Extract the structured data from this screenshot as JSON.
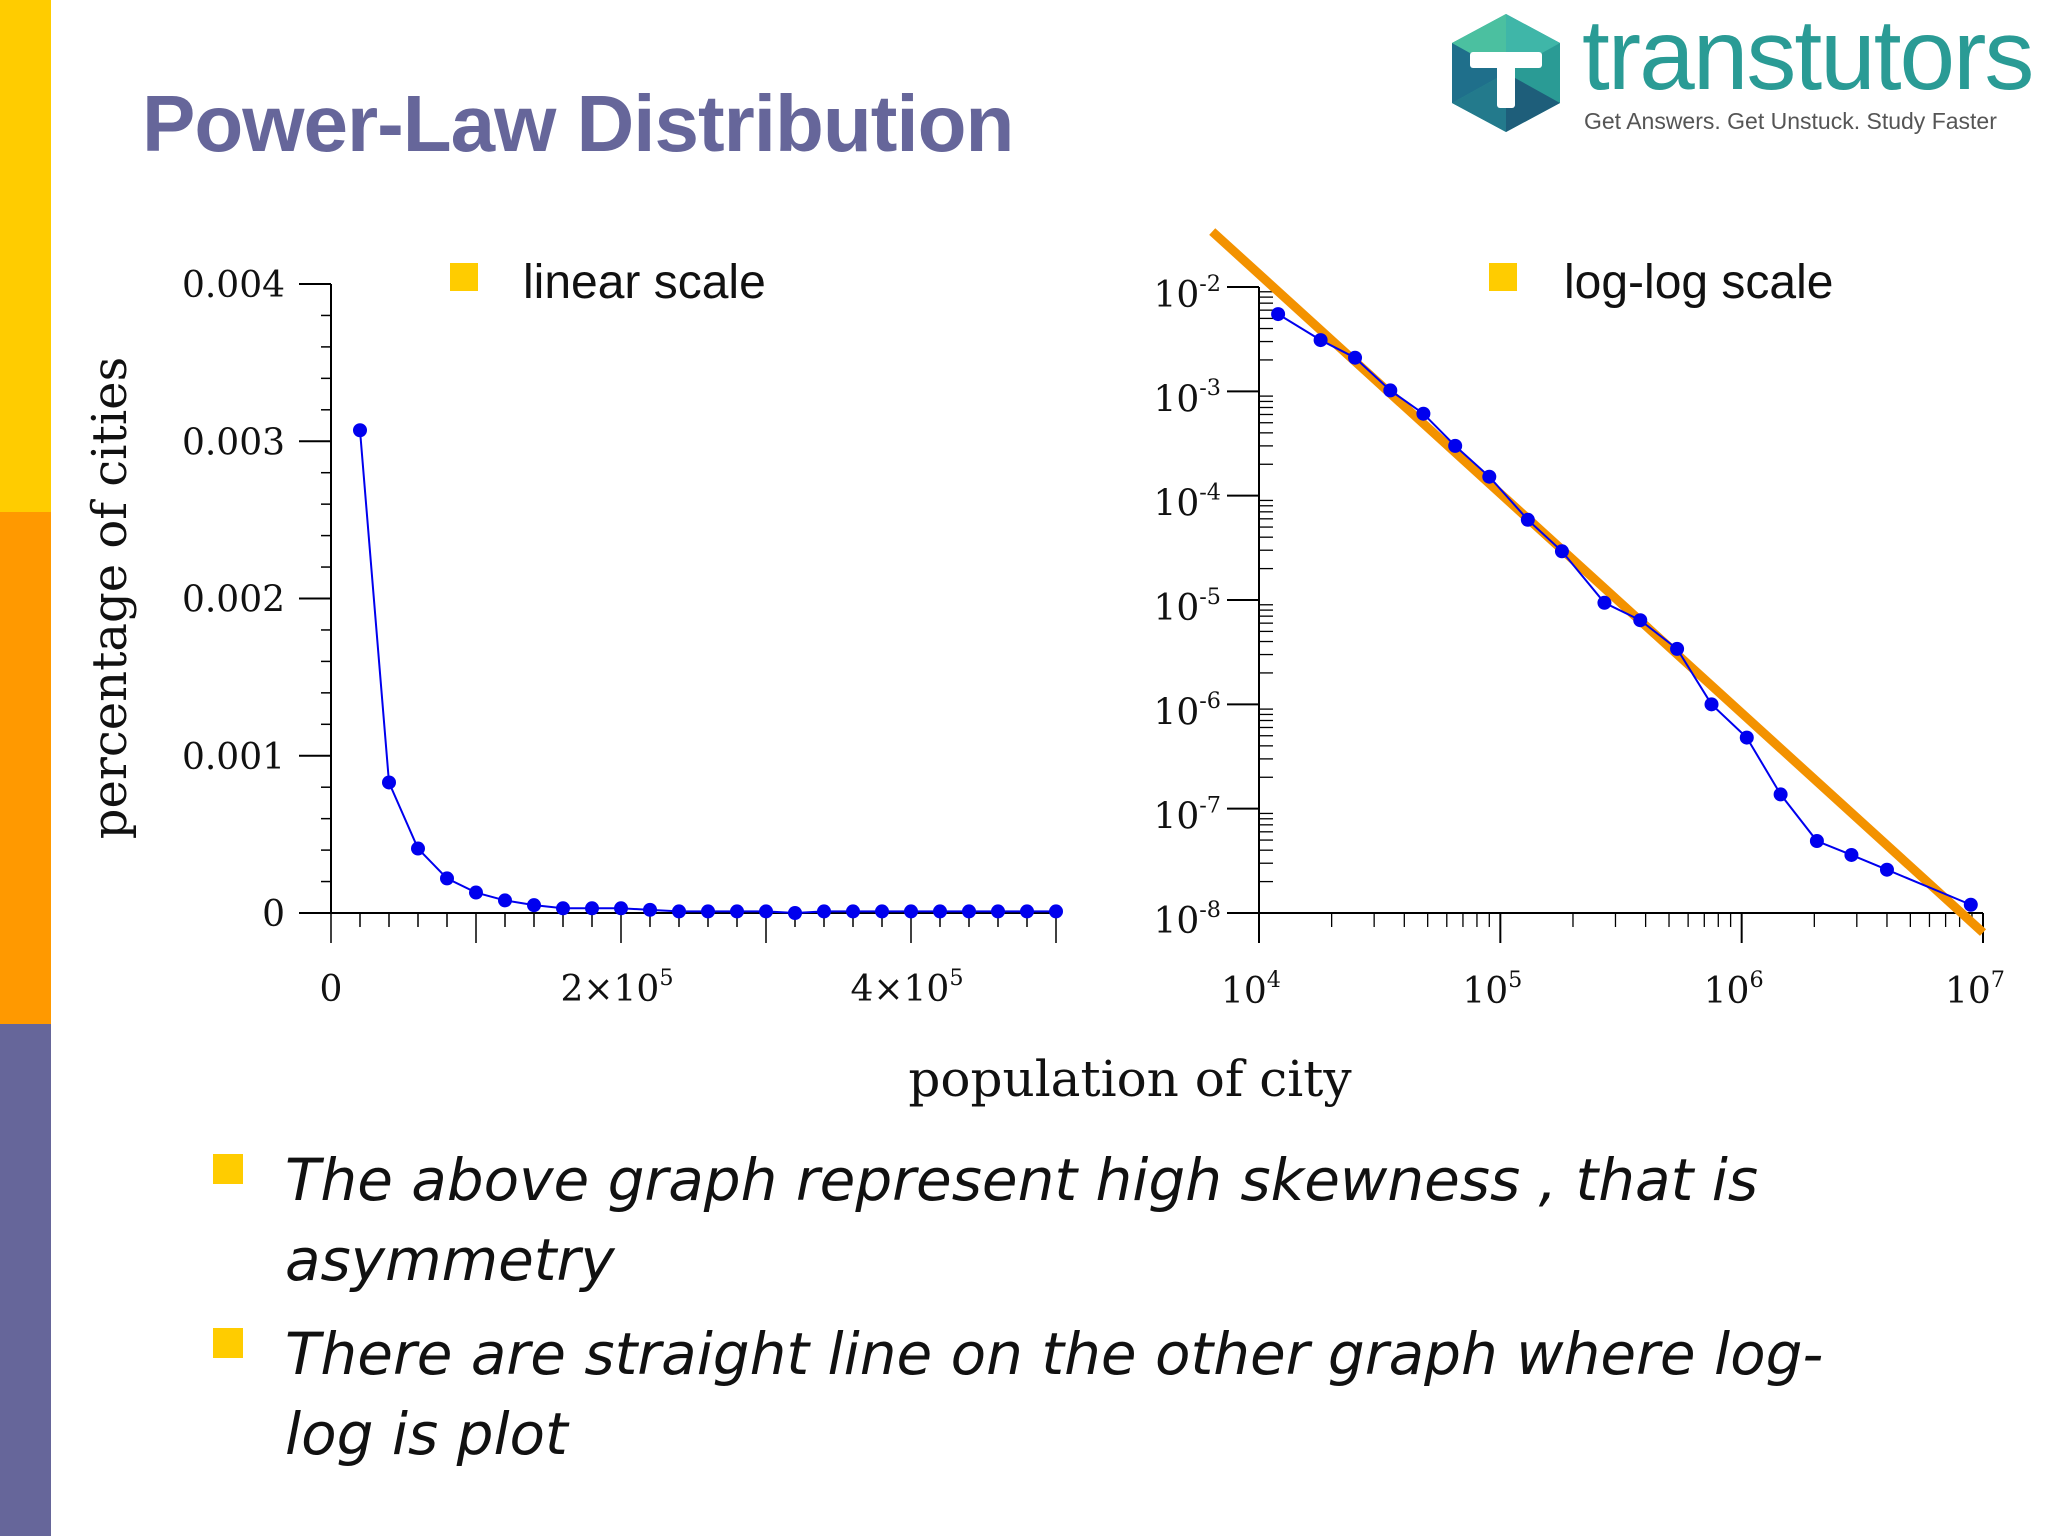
{
  "slide": {
    "title": "Power-Law Distribution",
    "brand": {
      "name": "transtutors",
      "tagline": "Get Answers. Get Unstuck. Study Faster"
    },
    "bullets": [
      "The above graph represent high skewness , that is asymmetry",
      "There are straight line on the other graph where log-log is plot"
    ],
    "colors": {
      "title": "#66669A",
      "accent_yellow": "#FFCC00",
      "accent_orange": "#FF9900",
      "accent_purple": "#66669A",
      "series": "#0000EE",
      "reference_line": "#F39200",
      "brand_teal": "#2A9B95"
    }
  },
  "chart_data": [
    {
      "type": "line",
      "legend": "linear scale",
      "ylabel": "percentage of cities",
      "shared_xlabel": "population of city",
      "xlim": [
        0,
        500000
      ],
      "ylim": [
        0,
        0.004
      ],
      "x_ticks": [
        {
          "value": 0,
          "mantissa": "0",
          "exponent": ""
        },
        {
          "value": 200000,
          "mantissa": "2×10",
          "exponent": "5"
        },
        {
          "value": 400000,
          "mantissa": "4×10",
          "exponent": "5"
        }
      ],
      "y_ticks": [
        {
          "value": 0,
          "label": "0"
        },
        {
          "value": 0.001,
          "label": "0.001"
        },
        {
          "value": 0.002,
          "label": "0.002"
        },
        {
          "value": 0.003,
          "label": "0.003"
        },
        {
          "value": 0.004,
          "label": "0.004"
        }
      ],
      "series": [
        {
          "x": [
            20000,
            40000,
            60000,
            80000,
            100000,
            120000,
            140000,
            160000,
            180000,
            200000,
            220000,
            240000,
            260000,
            280000,
            300000,
            320000,
            340000,
            360000,
            380000,
            400000,
            420000,
            440000,
            460000,
            480000,
            500000
          ],
          "values": [
            0.00307,
            0.00083,
            0.00041,
            0.00022,
            0.00013,
            8e-05,
            5e-05,
            3e-05,
            3e-05,
            3e-05,
            2e-05,
            1e-05,
            1e-05,
            1e-05,
            1e-05,
            0.0,
            1e-05,
            1e-05,
            1e-05,
            1e-05,
            1e-05,
            1e-05,
            1e-05,
            1e-05,
            1e-05
          ]
        }
      ]
    },
    {
      "type": "line",
      "legend": "log-log scale",
      "xscale": "log",
      "yscale": "log",
      "xlim": [
        10000,
        10000000
      ],
      "ylim": [
        1e-08,
        0.01
      ],
      "x_ticks": [
        {
          "value": 10000,
          "mantissa": "10",
          "exponent": "4"
        },
        {
          "value": 100000,
          "mantissa": "10",
          "exponent": "5"
        },
        {
          "value": 1000000,
          "mantissa": "10",
          "exponent": "6"
        },
        {
          "value": 10000000,
          "mantissa": "10",
          "exponent": "7"
        }
      ],
      "y_ticks": [
        {
          "value": 0.01,
          "mantissa": "10",
          "exponent": "-2"
        },
        {
          "value": 0.001,
          "mantissa": "10",
          "exponent": "-3"
        },
        {
          "value": 0.0001,
          "mantissa": "10",
          "exponent": "-4"
        },
        {
          "value": 1e-05,
          "mantissa": "10",
          "exponent": "-5"
        },
        {
          "value": 1e-06,
          "mantissa": "10",
          "exponent": "-6"
        },
        {
          "value": 1e-07,
          "mantissa": "10",
          "exponent": "-7"
        },
        {
          "value": 1e-08,
          "mantissa": "10",
          "exponent": "-8"
        }
      ],
      "series": [
        {
          "x": [
            12000,
            18000,
            25000,
            35000,
            48000,
            65000,
            90000,
            130000,
            180000,
            270000,
            380000,
            540000,
            750000,
            1050000,
            1450000,
            2050000,
            2850000,
            4000000,
            8900000
          ],
          "values": [
            0.0055,
            0.0031,
            0.0021,
            0.00102,
            0.00061,
            0.0003,
            0.000152,
            5.87e-05,
            2.93e-05,
            9.4e-06,
            6.4e-06,
            3.4e-06,
            1e-06,
            4.8e-07,
            1.37e-07,
            4.9e-08,
            3.6e-08,
            2.6e-08,
            1.2e-08
          ]
        }
      ],
      "reference_line": {
        "x": [
          6400,
          10000000
        ],
        "values": [
          0.034,
          6.5e-09
        ]
      }
    }
  ]
}
